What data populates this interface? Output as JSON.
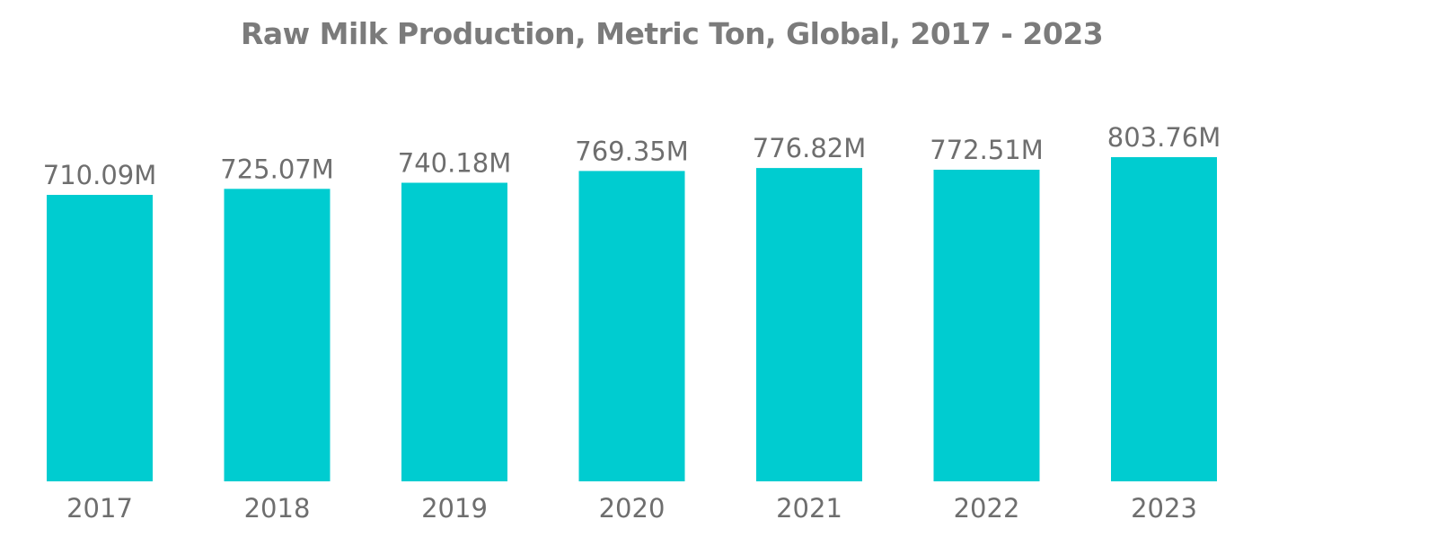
{
  "chart_data": {
    "type": "bar",
    "title": "Raw Milk Production, Metric Ton, Global, 2017 - 2023",
    "xlabel": "",
    "ylabel": "",
    "categories": [
      "2017",
      "2018",
      "2019",
      "2020",
      "2021",
      "2022",
      "2023"
    ],
    "values": [
      710.09,
      725.07,
      740.18,
      769.35,
      776.82,
      772.51,
      803.76
    ],
    "value_labels": [
      "710.09M",
      "725.07M",
      "740.18M",
      "769.35M",
      "776.82M",
      "772.51M",
      "803.76M"
    ],
    "unit": "M",
    "ylim": [
      0,
      803.76
    ],
    "grid": false,
    "legend": "none",
    "bar_color": "#00ccd0"
  }
}
